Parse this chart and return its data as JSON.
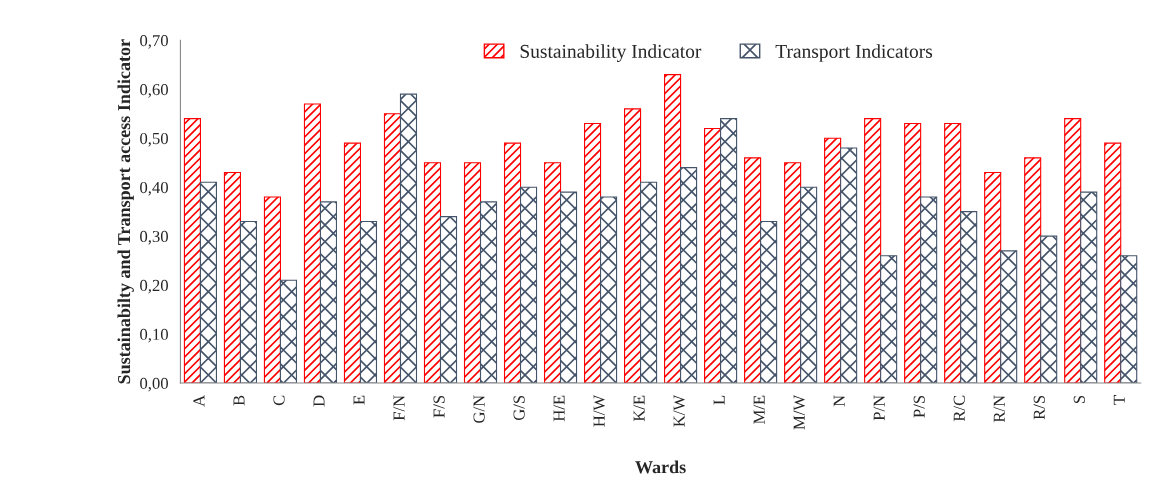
{
  "chart_data": {
    "type": "bar",
    "xlabel": "Wards",
    "ylabel": "Sustainabilty and Transport access Indicator",
    "categories": [
      "A",
      "B",
      "C",
      "D",
      "E",
      "F/N",
      "F/S",
      "G/N",
      "G/S",
      "H/E",
      "H/W",
      "K/E",
      "K/W",
      "L",
      "M/E",
      "M/W",
      "N",
      "P/N",
      "P/S",
      "R/C",
      "R/N",
      "R/S",
      "S",
      "T"
    ],
    "series": [
      {
        "name": "Sustainability Indicator",
        "color": "#ff0000",
        "values": [
          0.54,
          0.43,
          0.38,
          0.57,
          0.49,
          0.55,
          0.45,
          0.45,
          0.49,
          0.45,
          0.53,
          0.56,
          0.63,
          0.52,
          0.46,
          0.45,
          0.5,
          0.54,
          0.53,
          0.53,
          0.43,
          0.46,
          0.54,
          0.49
        ]
      },
      {
        "name": "Transport Indicators",
        "color": "#44546a",
        "values": [
          0.41,
          0.33,
          0.21,
          0.37,
          0.33,
          0.59,
          0.34,
          0.37,
          0.4,
          0.39,
          0.38,
          0.41,
          0.44,
          0.54,
          0.33,
          0.4,
          0.48,
          0.26,
          0.38,
          0.35,
          0.27,
          0.3,
          0.39,
          0.26
        ]
      }
    ],
    "ylim": [
      0,
      0.7
    ],
    "yticks": [
      {
        "value": 0,
        "label": "0,00"
      },
      {
        "value": 0.1,
        "label": "0,10"
      },
      {
        "value": 0.2,
        "label": "0,20"
      },
      {
        "value": 0.3,
        "label": "0,30"
      },
      {
        "value": 0.4,
        "label": "0,40"
      },
      {
        "value": 0.5,
        "label": "0,50"
      },
      {
        "value": 0.6,
        "label": "0,60"
      },
      {
        "value": 0.7,
        "label": "0,70"
      }
    ],
    "grid": false,
    "legend": "top"
  }
}
